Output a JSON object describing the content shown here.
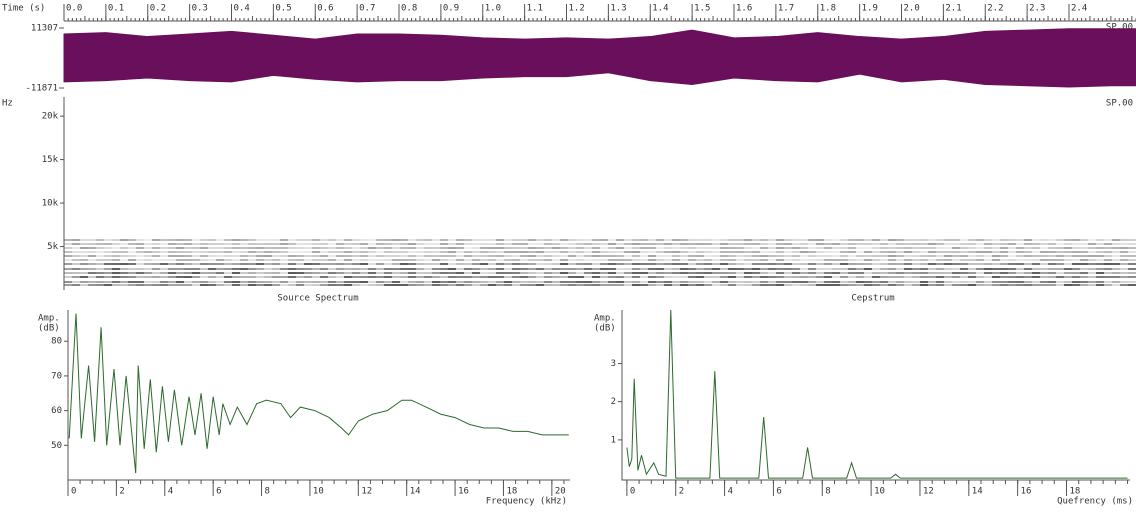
{
  "chart_data": [
    {
      "type": "waveform",
      "xlabel": "Time (s)",
      "label": "SP.00",
      "xlim": [
        0,
        2.56
      ],
      "xticks": [
        {
          "value": 0,
          "label": "0.0"
        },
        0.1,
        0.2,
        0.3,
        0.4,
        0.5,
        0.6,
        0.7,
        0.8,
        0.9,
        {
          "value": 1,
          "label": "1.0"
        },
        1.1,
        1.2,
        1.3,
        1.4,
        1.5,
        1.6,
        1.7,
        1.8,
        1.9,
        {
          "value": 2,
          "label": "2.0"
        },
        2.1,
        2.2,
        2.3,
        2.4
      ],
      "ylim": [
        -11871,
        11307
      ],
      "yticks": [
        11307,
        -11871
      ],
      "x": [
        0,
        0.1,
        0.2,
        0.3,
        0.4,
        0.5,
        0.6,
        0.7,
        0.8,
        0.9,
        1.0,
        1.1,
        1.2,
        1.3,
        1.4,
        1.5,
        1.6,
        1.7,
        1.8,
        1.9,
        2.0,
        2.1,
        2.2,
        2.3,
        2.4,
        2.5
      ],
      "series": [
        {
          "color": "#6a0f5c",
          "values": [
            9000,
            9500,
            8000,
            9000,
            10000,
            8500,
            7000,
            9000,
            9000,
            8500,
            7500,
            7000,
            7500,
            7000,
            8000,
            10500,
            7500,
            8000,
            9500,
            8000,
            7000,
            8000,
            10000,
            10500,
            11000,
            11000
          ]
        },
        {
          "color": "#6a0f5c",
          "values": [
            -9500,
            -9000,
            -8000,
            -9000,
            -9500,
            -7000,
            -8500,
            -9500,
            -9000,
            -9000,
            -8000,
            -7500,
            -7500,
            -6000,
            -9000,
            -10500,
            -8000,
            -9000,
            -9500,
            -6500,
            -9500,
            -8500,
            -10500,
            -11000,
            -11500,
            -11000
          ]
        }
      ]
    },
    {
      "type": "spectrogram",
      "ylabel": "Hz",
      "label": "SP.00",
      "ylim": [
        0,
        22200
      ],
      "yticks": [
        {
          "value": 5000,
          "label": "5k"
        },
        {
          "value": 10000,
          "label": "10k"
        },
        {
          "value": 15000,
          "label": "15k"
        },
        {
          "value": 20000,
          "label": "20k"
        }
      ]
    },
    {
      "type": "line",
      "title": "Source Spectrum",
      "ylabel": [
        "Amp.",
        "(dB)"
      ],
      "xlabel": "Frequency (kHz)",
      "color": "#2d6a2d",
      "xlim": [
        0,
        20.75
      ],
      "xticks": [
        0,
        2,
        4,
        6,
        8,
        10,
        12,
        14,
        16,
        18,
        20
      ],
      "ylim": [
        40,
        89
      ],
      "yticks": [
        50,
        60,
        70,
        80
      ],
      "x": [
        0.05,
        0.33,
        0.55,
        0.85,
        1.1,
        1.37,
        1.6,
        1.9,
        2.15,
        2.4,
        2.8,
        2.9,
        3.15,
        3.4,
        3.65,
        3.9,
        4.15,
        4.4,
        4.7,
        5.0,
        5.25,
        5.5,
        5.75,
        6.0,
        6.25,
        6.4,
        6.7,
        7.0,
        7.4,
        7.8,
        8.2,
        8.8,
        9.2,
        9.6,
        10.2,
        10.8,
        11.3,
        11.6,
        12.0,
        12.6,
        13.2,
        13.8,
        14.2,
        14.8,
        15.4,
        16.0,
        16.6,
        17.2,
        17.8,
        18.4,
        19.0,
        19.6,
        20.2,
        20.7
      ],
      "values": [
        52,
        88,
        52,
        73,
        51,
        84,
        50,
        72,
        50,
        70,
        42,
        73,
        49,
        69,
        48,
        67,
        51,
        66,
        50,
        64,
        53,
        65,
        49,
        64,
        53,
        62,
        56,
        61,
        56,
        62,
        63,
        62,
        58,
        61,
        60,
        58,
        55,
        53,
        57,
        59,
        60,
        63,
        63,
        61,
        59,
        58,
        56,
        55,
        55,
        54,
        54,
        53,
        53,
        53
      ]
    },
    {
      "type": "line",
      "title": "Cepstrum",
      "ylabel": [
        "Amp.",
        "(dB)"
      ],
      "xlabel": "Quefrency (ms)",
      "color": "#2d6a2d",
      "xlim": [
        -0.2,
        20.6
      ],
      "xticks": [
        0,
        2,
        4,
        6,
        8,
        10,
        12,
        14,
        16,
        18
      ],
      "ylim": [
        -0.05,
        4.4
      ],
      "yticks": [
        1,
        2,
        3
      ],
      "x": [
        0,
        0.1,
        0.2,
        0.3,
        0.45,
        0.6,
        0.8,
        1.1,
        1.3,
        1.6,
        1.8,
        2.0,
        3.4,
        3.6,
        3.8,
        5.4,
        5.6,
        5.8,
        7.2,
        7.4,
        7.6,
        9.0,
        9.2,
        9.4,
        10.8,
        11.0,
        11.2,
        20.5
      ],
      "values": [
        0.8,
        0.3,
        0.5,
        2.6,
        0.2,
        0.6,
        0.1,
        0.4,
        0.1,
        0.05,
        4.4,
        0,
        0,
        2.8,
        0,
        0,
        1.6,
        0,
        0,
        0.8,
        0,
        0,
        0.4,
        0,
        0,
        0.1,
        0,
        0
      ]
    }
  ]
}
